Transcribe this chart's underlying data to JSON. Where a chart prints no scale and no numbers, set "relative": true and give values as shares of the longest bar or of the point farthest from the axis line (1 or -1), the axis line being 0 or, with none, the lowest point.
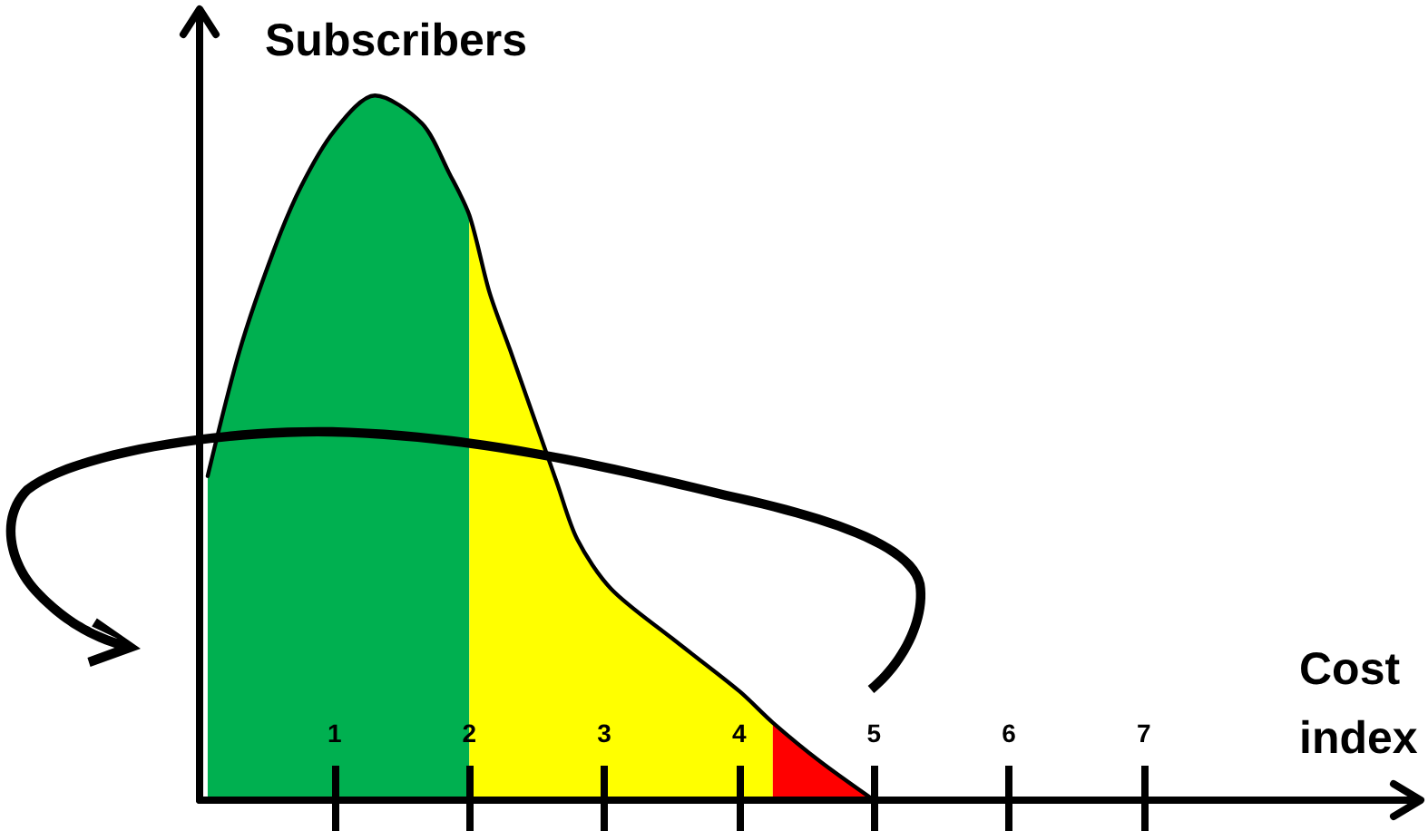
{
  "chart_data": {
    "type": "area",
    "xlabel": "Cost index",
    "ylabel": "Subscribers",
    "relative": true,
    "marker": "none",
    "xlim": [
      0,
      9
    ],
    "xticks": [
      1,
      2,
      3,
      4,
      5,
      6,
      7
    ],
    "series": [
      {
        "color": "#00b050",
        "x": [
          0.06,
          0.3,
          0.55,
          0.75,
          1.0,
          1.3,
          1.65,
          1.85,
          2.0
        ],
        "values": [
          0.46,
          0.64,
          0.78,
          0.87,
          0.95,
          1.0,
          0.96,
          0.89,
          0.83
        ]
      },
      {
        "color": "#ffff00",
        "x": [
          2.0,
          2.15,
          2.3,
          2.65,
          2.8,
          3.05,
          3.5,
          4.0,
          4.25
        ],
        "values": [
          0.83,
          0.72,
          0.64,
          0.45,
          0.37,
          0.3,
          0.23,
          0.155,
          0.11
        ]
      },
      {
        "color": "#ff0000",
        "x": [
          4.25,
          4.6,
          5.0
        ],
        "values": [
          0.11,
          0.055,
          0
        ]
      },
      {
        "type": "line",
        "color": "#000000",
        "x": [
          0.06,
          0.3,
          0.55,
          0.75,
          1.0,
          1.3,
          1.65,
          1.85,
          2.0,
          2.15,
          2.3,
          2.65,
          2.8,
          3.05,
          3.5,
          4.0,
          4.25,
          4.6,
          5.0
        ],
        "values": [
          0.46,
          0.64,
          0.78,
          0.87,
          0.95,
          1.0,
          0.96,
          0.89,
          0.83,
          0.72,
          0.64,
          0.45,
          0.37,
          0.3,
          0.23,
          0.155,
          0.11,
          0.055,
          0
        ]
      }
    ]
  }
}
